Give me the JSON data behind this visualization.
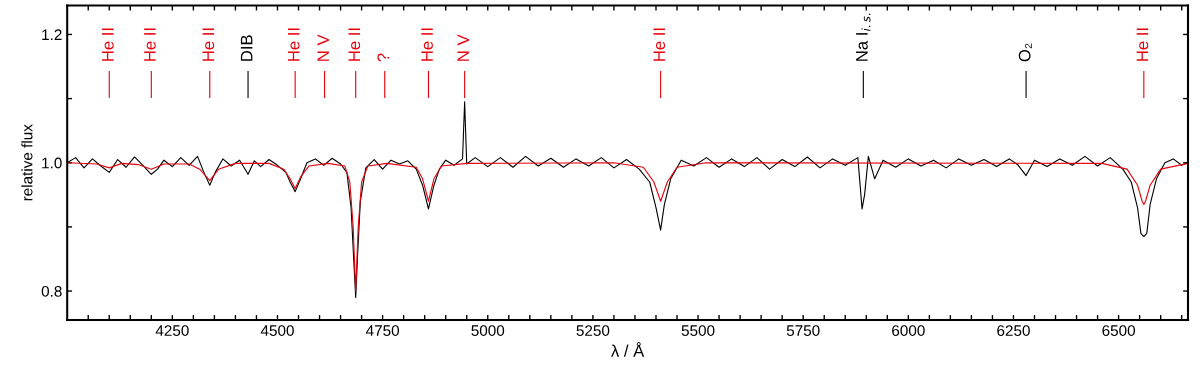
{
  "chart_data": {
    "type": "line",
    "xlabel": "λ / Å",
    "ylabel": "relative flux",
    "xlim": [
      4000,
      6665
    ],
    "ylim": [
      0.755,
      1.245
    ],
    "xticks": [
      {
        "value": 4050,
        "label": null
      },
      {
        "value": 4100,
        "label": null
      },
      {
        "value": 4150,
        "label": null
      },
      {
        "value": 4200,
        "label": null
      },
      4250,
      {
        "value": 4300,
        "label": null
      },
      {
        "value": 4350,
        "label": null
      },
      {
        "value": 4400,
        "label": null
      },
      {
        "value": 4450,
        "label": null
      },
      4500,
      {
        "value": 4550,
        "label": null
      },
      {
        "value": 4600,
        "label": null
      },
      {
        "value": 4650,
        "label": null
      },
      {
        "value": 4700,
        "label": null
      },
      4750,
      {
        "value": 4800,
        "label": null
      },
      {
        "value": 4850,
        "label": null
      },
      {
        "value": 4900,
        "label": null
      },
      {
        "value": 4950,
        "label": null
      },
      5000,
      {
        "value": 5050,
        "label": null
      },
      {
        "value": 5100,
        "label": null
      },
      {
        "value": 5150,
        "label": null
      },
      {
        "value": 5200,
        "label": null
      },
      5250,
      {
        "value": 5300,
        "label": null
      },
      {
        "value": 5350,
        "label": null
      },
      {
        "value": 5400,
        "label": null
      },
      {
        "value": 5450,
        "label": null
      },
      5500,
      {
        "value": 5550,
        "label": null
      },
      {
        "value": 5600,
        "label": null
      },
      {
        "value": 5650,
        "label": null
      },
      {
        "value": 5700,
        "label": null
      },
      5750,
      {
        "value": 5800,
        "label": null
      },
      {
        "value": 5850,
        "label": null
      },
      {
        "value": 5900,
        "label": null
      },
      {
        "value": 5950,
        "label": null
      },
      6000,
      {
        "value": 6050,
        "label": null
      },
      {
        "value": 6100,
        "label": null
      },
      {
        "value": 6150,
        "label": null
      },
      {
        "value": 6200,
        "label": null
      },
      6250,
      {
        "value": 6300,
        "label": null
      },
      {
        "value": 6350,
        "label": null
      },
      {
        "value": 6400,
        "label": null
      },
      {
        "value": 6450,
        "label": null
      },
      6500,
      {
        "value": 6550,
        "label": null
      },
      {
        "value": 6600,
        "label": null
      },
      {
        "value": 6650,
        "label": null
      }
    ],
    "yticks": [
      {
        "value": 0.8,
        "label": "0.8"
      },
      {
        "value": 0.9,
        "label": null
      },
      {
        "value": 1.0,
        "label": "1.0"
      },
      {
        "value": 1.1,
        "label": null
      },
      {
        "value": 1.2,
        "label": "1.2"
      }
    ],
    "grid": false,
    "marker": "none",
    "line_style": "solid",
    "series": [
      {
        "color": "#000000",
        "x": [
          4000,
          4020,
          4040,
          4060,
          4080,
          4100,
          4120,
          4140,
          4160,
          4180,
          4200,
          4215,
          4230,
          4250,
          4270,
          4290,
          4310,
          4325,
          4339,
          4352,
          4370,
          4390,
          4410,
          4430,
          4445,
          4460,
          4480,
          4500,
          4520,
          4530,
          4542,
          4555,
          4570,
          4590,
          4610,
          4630,
          4650,
          4665,
          4675,
          4682,
          4686,
          4690,
          4697,
          4710,
          4730,
          4750,
          4770,
          4790,
          4810,
          4830,
          4845,
          4859,
          4872,
          4885,
          4900,
          4920,
          4940,
          4945,
          4950,
          4970,
          5000,
          5030,
          5060,
          5090,
          5120,
          5150,
          5180,
          5210,
          5240,
          5270,
          5300,
          5330,
          5360,
          5385,
          5400,
          5411,
          5420,
          5435,
          5460,
          5490,
          5520,
          5550,
          5580,
          5610,
          5640,
          5670,
          5700,
          5730,
          5760,
          5790,
          5820,
          5850,
          5880,
          5890,
          5896,
          5905,
          5920,
          5940,
          5970,
          6000,
          6030,
          6060,
          6090,
          6120,
          6150,
          6180,
          6210,
          6240,
          6260,
          6280,
          6300,
          6330,
          6360,
          6390,
          6420,
          6450,
          6480,
          6510,
          6530,
          6545,
          6553,
          6560,
          6567,
          6575,
          6590,
          6610,
          6630,
          6650,
          6665
        ],
        "values": [
          1.0,
          1.008,
          0.992,
          1.006,
          0.995,
          0.985,
          1.005,
          0.993,
          1.009,
          0.996,
          0.982,
          0.99,
          1.004,
          0.994,
          1.008,
          0.996,
          1.01,
          0.985,
          0.965,
          0.985,
          1.006,
          0.995,
          1.004,
          0.982,
          1.003,
          0.994,
          1.005,
          0.996,
          0.985,
          0.97,
          0.955,
          0.975,
          1.0,
          1.006,
          0.996,
          1.007,
          0.998,
          0.985,
          0.93,
          0.84,
          0.79,
          0.85,
          0.94,
          0.992,
          1.005,
          0.99,
          1.004,
          0.998,
          1.003,
          0.99,
          0.965,
          0.928,
          0.965,
          0.99,
          1.004,
          0.996,
          1.006,
          1.095,
          0.998,
          1.008,
          0.994,
          1.008,
          0.993,
          1.01,
          0.995,
          1.007,
          0.993,
          1.006,
          0.995,
          1.008,
          0.992,
          1.005,
          0.99,
          0.97,
          0.93,
          0.895,
          0.935,
          0.975,
          1.004,
          0.995,
          1.008,
          0.993,
          1.006,
          0.994,
          1.008,
          0.99,
          1.005,
          0.994,
          1.009,
          0.992,
          1.006,
          0.996,
          1.008,
          0.928,
          0.95,
          1.01,
          0.975,
          1.004,
          0.993,
          1.006,
          0.995,
          1.004,
          0.992,
          1.006,
          0.996,
          1.005,
          0.994,
          1.006,
          0.997,
          0.98,
          1.004,
          0.994,
          1.006,
          0.996,
          1.01,
          0.995,
          1.008,
          0.99,
          0.97,
          0.93,
          0.89,
          0.885,
          0.89,
          0.935,
          0.975,
          1.0,
          1.006,
          0.996,
          1.0
        ]
      },
      {
        "color": "#e8000b",
        "x": [
          4000,
          4070,
          4100,
          4130,
          4170,
          4200,
          4230,
          4290,
          4315,
          4339,
          4360,
          4400,
          4480,
          4515,
          4530,
          4542,
          4555,
          4575,
          4620,
          4660,
          4672,
          4680,
          4686,
          4692,
          4700,
          4715,
          4760,
          4830,
          4845,
          4859,
          4872,
          4890,
          4950,
          5300,
          5370,
          5395,
          5411,
          5427,
          5450,
          5520,
          6460,
          6520,
          6545,
          6556,
          6560,
          6564,
          6575,
          6600,
          6665
        ],
        "values": [
          1.0,
          0.998,
          0.992,
          0.999,
          0.997,
          0.99,
          0.998,
          0.998,
          0.99,
          0.972,
          0.99,
          0.999,
          0.999,
          0.99,
          0.975,
          0.96,
          0.978,
          0.995,
          0.999,
          0.995,
          0.97,
          0.9,
          0.8,
          0.9,
          0.97,
          0.995,
          0.999,
          0.993,
          0.975,
          0.94,
          0.975,
          0.995,
          0.999,
          1.0,
          0.993,
          0.97,
          0.94,
          0.97,
          0.993,
          1.0,
          0.999,
          0.99,
          0.965,
          0.94,
          0.935,
          0.94,
          0.965,
          0.99,
          0.999
        ]
      }
    ],
    "ref_lines": [
      {
        "axis": "x",
        "value": 4100,
        "label": "He II",
        "color": "#e8000b"
      },
      {
        "axis": "x",
        "value": 4200,
        "label": "He II",
        "color": "#e8000b"
      },
      {
        "axis": "x",
        "value": 4339,
        "label": "He II",
        "color": "#e8000b"
      },
      {
        "axis": "x",
        "value": 4430,
        "label": "DIB",
        "color": "#000000"
      },
      {
        "axis": "x",
        "value": 4542,
        "label": "He II",
        "color": "#e8000b"
      },
      {
        "axis": "x",
        "value": 4612,
        "label": "N V",
        "color": "#e8000b"
      },
      {
        "axis": "x",
        "value": 4686,
        "label": "He II",
        "color": "#e8000b"
      },
      {
        "axis": "x",
        "value": 4755,
        "label": "?",
        "color": "#e8000b"
      },
      {
        "axis": "x",
        "value": 4859,
        "label": "He II",
        "color": "#e8000b"
      },
      {
        "axis": "x",
        "value": 4945,
        "label": "N V",
        "color": "#e8000b"
      },
      {
        "axis": "x",
        "value": 5411,
        "label": "He II",
        "color": "#e8000b"
      },
      {
        "axis": "x",
        "value": 5893,
        "label": "Na I$_{i.s.}$",
        "color": "#000000"
      },
      {
        "axis": "x",
        "value": 6280,
        "label": "O₂",
        "color": "#000000"
      },
      {
        "axis": "x",
        "value": 6560,
        "label": "He II",
        "color": "#e8000b"
      }
    ]
  }
}
